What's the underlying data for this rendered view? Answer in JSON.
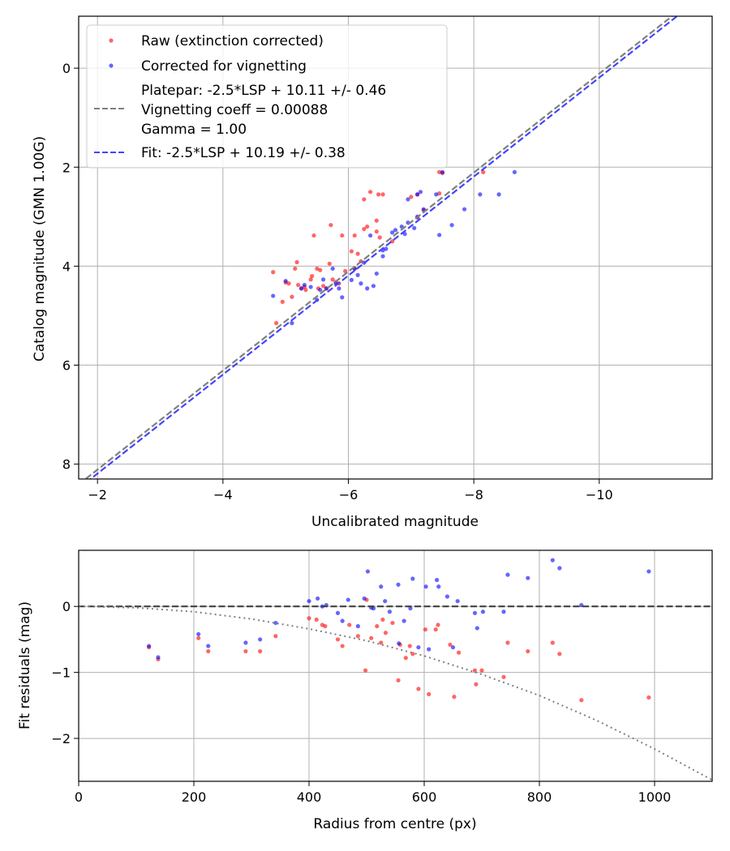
{
  "chart_data": [
    {
      "type": "scatter",
      "xlabel": "Uncalibrated magnitude",
      "ylabel": "Catalog magnitude (GMN 1.00G)",
      "xlim": [
        -1.7,
        -11.8
      ],
      "ylim": [
        8.3,
        -1.05
      ],
      "x_inverted": true,
      "y_inverted": true,
      "xticks": [
        -2,
        -4,
        -6,
        -8,
        -10
      ],
      "xtick_labels": [
        "−2",
        "−4",
        "−6",
        "−8",
        "−10"
      ],
      "yticks": [
        0,
        2,
        4,
        6,
        8
      ],
      "ytick_labels": [
        "0",
        "2",
        "4",
        "6",
        "8"
      ],
      "grid": true,
      "legend_position": "top-left",
      "series": [
        {
          "name": "Raw (extinction corrected)",
          "kind": "scatter",
          "color": "#ff0000",
          "points": [
            [
              -4.8,
              4.12
            ],
            [
              -4.85,
              5.15
            ],
            [
              -4.95,
              4.72
            ],
            [
              -5.0,
              4.33
            ],
            [
              -5.05,
              4.35
            ],
            [
              -5.1,
              4.62
            ],
            [
              -5.15,
              4.05
            ],
            [
              -5.18,
              3.92
            ],
            [
              -5.2,
              4.38
            ],
            [
              -5.25,
              4.45
            ],
            [
              -5.3,
              4.42
            ],
            [
              -5.32,
              4.48
            ],
            [
              -5.4,
              4.27
            ],
            [
              -5.42,
              4.2
            ],
            [
              -5.45,
              3.38
            ],
            [
              -5.5,
              4.05
            ],
            [
              -5.52,
              4.45
            ],
            [
              -5.55,
              4.08
            ],
            [
              -5.6,
              4.4
            ],
            [
              -5.65,
              4.45
            ],
            [
              -5.7,
              3.95
            ],
            [
              -5.72,
              3.17
            ],
            [
              -5.75,
              4.27
            ],
            [
              -5.8,
              4.32
            ],
            [
              -5.85,
              4.35
            ],
            [
              -5.9,
              3.38
            ],
            [
              -5.95,
              4.1
            ],
            [
              -6.05,
              3.7
            ],
            [
              -6.1,
              4.05
            ],
            [
              -6.1,
              3.38
            ],
            [
              -6.15,
              3.75
            ],
            [
              -6.2,
              3.9
            ],
            [
              -6.25,
              3.25
            ],
            [
              -6.25,
              2.65
            ],
            [
              -6.3,
              3.2
            ],
            [
              -6.35,
              2.5
            ],
            [
              -6.45,
              3.08
            ],
            [
              -6.45,
              3.3
            ],
            [
              -6.48,
              2.55
            ],
            [
              -6.5,
              3.42
            ],
            [
              -6.55,
              2.55
            ],
            [
              -6.7,
              3.5
            ],
            [
              -7.0,
              2.6
            ],
            [
              -7.1,
              2.55
            ],
            [
              -7.1,
              3.02
            ],
            [
              -7.2,
              2.87
            ],
            [
              -7.45,
              2.1
            ],
            [
              -7.45,
              2.53
            ],
            [
              -7.5,
              2.12
            ],
            [
              -8.15,
              2.1
            ]
          ]
        },
        {
          "name": "Corrected for vignetting",
          "kind": "scatter",
          "color": "#0000ff",
          "points": [
            [
              -4.8,
              4.6
            ],
            [
              -5.0,
              4.3
            ],
            [
              -5.1,
              5.15
            ],
            [
              -5.25,
              4.45
            ],
            [
              -5.3,
              4.38
            ],
            [
              -5.4,
              4.42
            ],
            [
              -5.5,
              4.68
            ],
            [
              -5.55,
              4.48
            ],
            [
              -5.6,
              4.27
            ],
            [
              -5.65,
              4.45
            ],
            [
              -5.75,
              4.05
            ],
            [
              -5.8,
              4.35
            ],
            [
              -5.85,
              4.45
            ],
            [
              -5.9,
              4.63
            ],
            [
              -6.05,
              4.28
            ],
            [
              -6.1,
              4.05
            ],
            [
              -6.15,
              4.18
            ],
            [
              -6.2,
              4.35
            ],
            [
              -6.25,
              3.93
            ],
            [
              -6.3,
              4.45
            ],
            [
              -6.35,
              3.38
            ],
            [
              -6.4,
              4.4
            ],
            [
              -6.45,
              4.15
            ],
            [
              -6.55,
              3.8
            ],
            [
              -6.6,
              3.65
            ],
            [
              -6.7,
              3.32
            ],
            [
              -6.85,
              3.2
            ],
            [
              -6.9,
              3.35
            ],
            [
              -6.95,
              2.65
            ],
            [
              -6.95,
              3.12
            ],
            [
              -7.05,
              3.23
            ],
            [
              -7.1,
              2.55
            ],
            [
              -7.1,
              3.0
            ],
            [
              -7.15,
              2.5
            ],
            [
              -7.4,
              2.55
            ],
            [
              -7.45,
              3.37
            ],
            [
              -7.5,
              2.1
            ],
            [
              -7.65,
              3.17
            ],
            [
              -7.85,
              2.85
            ],
            [
              -8.1,
              2.55
            ],
            [
              -8.4,
              2.55
            ],
            [
              -8.65,
              2.1
            ],
            [
              -6.55,
              3.68
            ],
            [
              -6.75,
              3.27
            ],
            [
              -7.2,
              2.85
            ]
          ]
        },
        {
          "name": "Platepar: -2.5*LSP + 10.11 +/- 0.46\nVignetting coeff = 0.00088\nGamma = 1.00",
          "kind": "line",
          "style": "dashed",
          "color": "#808080",
          "slope": 1,
          "offset": 10.11
        },
        {
          "name": "Fit: -2.5*LSP + 10.19 +/- 0.38",
          "kind": "line",
          "style": "dashed",
          "color": "#4444ff",
          "slope": 1,
          "offset": 10.19
        }
      ]
    },
    {
      "type": "scatter",
      "xlabel": "Radius from centre (px)",
      "ylabel": "Fit residuals (mag)",
      "xlim": [
        0,
        1100
      ],
      "ylim": [
        -2.65,
        0.85
      ],
      "xticks": [
        0,
        200,
        400,
        600,
        800,
        1000
      ],
      "xtick_labels": [
        "0",
        "200",
        "400",
        "600",
        "800",
        "1000"
      ],
      "yticks": [
        -2,
        -1,
        0
      ],
      "ytick_labels": [
        "−2",
        "−1",
        "0"
      ],
      "grid": true,
      "series": [
        {
          "kind": "scatter",
          "color": "#ff0000",
          "points": [
            [
              122,
              -0.62
            ],
            [
              138,
              -0.8
            ],
            [
              208,
              -0.48
            ],
            [
              225,
              -0.68
            ],
            [
              290,
              -0.68
            ],
            [
              315,
              -0.68
            ],
            [
              342,
              -0.45
            ],
            [
              400,
              -0.18
            ],
            [
              413,
              -0.2
            ],
            [
              423,
              -0.28
            ],
            [
              428,
              -0.3
            ],
            [
              450,
              -0.5
            ],
            [
              458,
              -0.6
            ],
            [
              470,
              -0.28
            ],
            [
              485,
              -0.45
            ],
            [
              498,
              -0.97
            ],
            [
              500,
              0.1
            ],
            [
              508,
              -0.48
            ],
            [
              518,
              -0.3
            ],
            [
              525,
              -0.55
            ],
            [
              528,
              -0.2
            ],
            [
              533,
              -0.4
            ],
            [
              545,
              -0.25
            ],
            [
              555,
              -1.12
            ],
            [
              558,
              -0.58
            ],
            [
              568,
              -0.78
            ],
            [
              575,
              -0.6
            ],
            [
              580,
              -0.72
            ],
            [
              590,
              -1.25
            ],
            [
              602,
              -0.35
            ],
            [
              608,
              -1.33
            ],
            [
              620,
              -0.35
            ],
            [
              624,
              -0.28
            ],
            [
              645,
              -0.58
            ],
            [
              652,
              -1.37
            ],
            [
              660,
              -0.7
            ],
            [
              688,
              -0.97
            ],
            [
              690,
              -1.18
            ],
            [
              700,
              -0.97
            ],
            [
              738,
              -1.07
            ],
            [
              745,
              -0.55
            ],
            [
              780,
              -0.68
            ],
            [
              823,
              -0.55
            ],
            [
              835,
              -0.72
            ],
            [
              873,
              -1.42
            ],
            [
              990,
              -1.38
            ]
          ]
        },
        {
          "kind": "scatter",
          "color": "#0000ff",
          "points": [
            [
              122,
              -0.6
            ],
            [
              138,
              -0.77
            ],
            [
              208,
              -0.42
            ],
            [
              225,
              -0.6
            ],
            [
              290,
              -0.55
            ],
            [
              315,
              -0.5
            ],
            [
              342,
              -0.25
            ],
            [
              400,
              0.08
            ],
            [
              415,
              0.12
            ],
            [
              423,
              0.0
            ],
            [
              430,
              0.02
            ],
            [
              450,
              -0.1
            ],
            [
              458,
              -0.22
            ],
            [
              468,
              0.1
            ],
            [
              485,
              -0.3
            ],
            [
              496,
              0.12
            ],
            [
              502,
              0.53
            ],
            [
              508,
              -0.02
            ],
            [
              512,
              -0.03
            ],
            [
              525,
              0.3
            ],
            [
              532,
              0.08
            ],
            [
              540,
              -0.08
            ],
            [
              555,
              0.33
            ],
            [
              556,
              -0.56
            ],
            [
              565,
              -0.22
            ],
            [
              576,
              -0.03
            ],
            [
              580,
              0.42
            ],
            [
              590,
              -0.62
            ],
            [
              603,
              0.3
            ],
            [
              608,
              -0.65
            ],
            [
              622,
              0.4
            ],
            [
              625,
              0.3
            ],
            [
              640,
              0.15
            ],
            [
              650,
              -0.62
            ],
            [
              658,
              0.08
            ],
            [
              688,
              -0.1
            ],
            [
              692,
              -0.33
            ],
            [
              702,
              -0.08
            ],
            [
              738,
              -0.08
            ],
            [
              745,
              0.48
            ],
            [
              780,
              0.43
            ],
            [
              823,
              0.7
            ],
            [
              835,
              0.58
            ],
            [
              873,
              0.02
            ],
            [
              990,
              0.53
            ]
          ]
        },
        {
          "kind": "line",
          "style": "dashed",
          "color": "#404040",
          "points": [
            [
              0,
              0
            ],
            [
              1100,
              0
            ]
          ]
        },
        {
          "kind": "line",
          "style": "dotted",
          "color": "#808080",
          "vignetting_coeff": 0.00088,
          "points": [
            [
              0,
              0
            ],
            [
              100,
              -0.02
            ],
            [
              200,
              -0.08
            ],
            [
              300,
              -0.19
            ],
            [
              400,
              -0.34
            ],
            [
              500,
              -0.52
            ],
            [
              600,
              -0.75
            ],
            [
              700,
              -1.03
            ],
            [
              800,
              -1.35
            ],
            [
              900,
              -1.73
            ],
            [
              1000,
              -2.16
            ],
            [
              1100,
              -2.63
            ]
          ]
        }
      ]
    }
  ]
}
